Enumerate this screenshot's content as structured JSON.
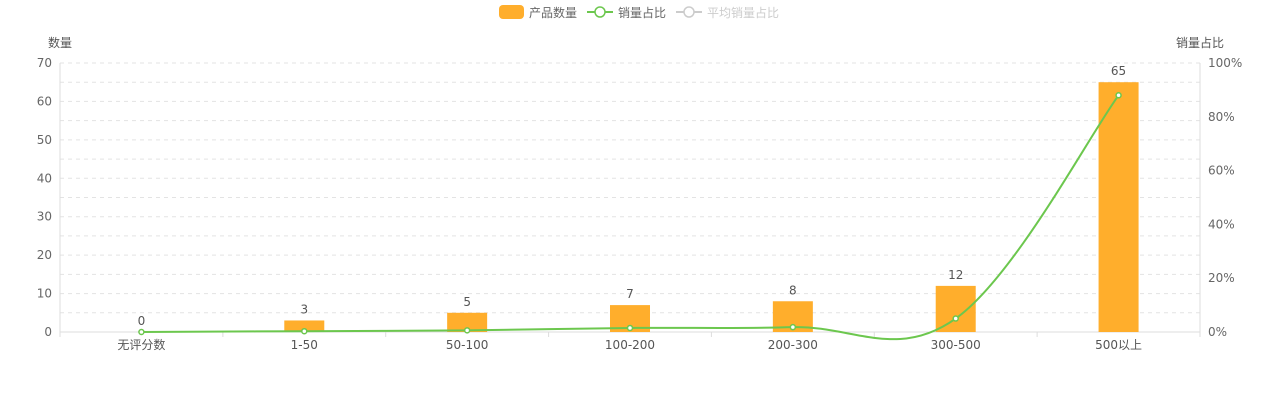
{
  "legend": [
    {
      "name": "产品数量",
      "type": "bar",
      "color": "#FFAE2C",
      "active": true
    },
    {
      "name": "销量占比",
      "type": "line",
      "color": "#6CC74E",
      "active": true
    },
    {
      "name": "平均销量占比",
      "type": "line",
      "color": "#CCCCCC",
      "active": false
    }
  ],
  "chart_data": {
    "type": "bar",
    "categories": [
      "无评分数",
      "1-50",
      "50-100",
      "100-200",
      "200-300",
      "300-500",
      "500以上"
    ],
    "series": [
      {
        "name": "产品数量",
        "type": "bar",
        "axis": "left",
        "values": [
          0,
          3,
          5,
          7,
          8,
          12,
          65
        ],
        "color": "#FFAE2C",
        "data_labels": true
      },
      {
        "name": "销量占比",
        "type": "line",
        "axis": "right",
        "values": [
          0,
          0.3,
          0.6,
          1.5,
          1.8,
          5,
          88
        ],
        "color": "#6CC74E",
        "smooth": true
      }
    ],
    "y_left": {
      "label": "数量",
      "min": 0,
      "max": 70,
      "ticks": [
        0,
        10,
        20,
        30,
        40,
        50,
        60,
        70
      ]
    },
    "y_right": {
      "label": "销量占比",
      "min": 0,
      "max": 100,
      "ticks": [
        "0%",
        "20%",
        "40%",
        "60%",
        "80%",
        "100%"
      ]
    },
    "grid": true,
    "legend_position": "top-center"
  }
}
